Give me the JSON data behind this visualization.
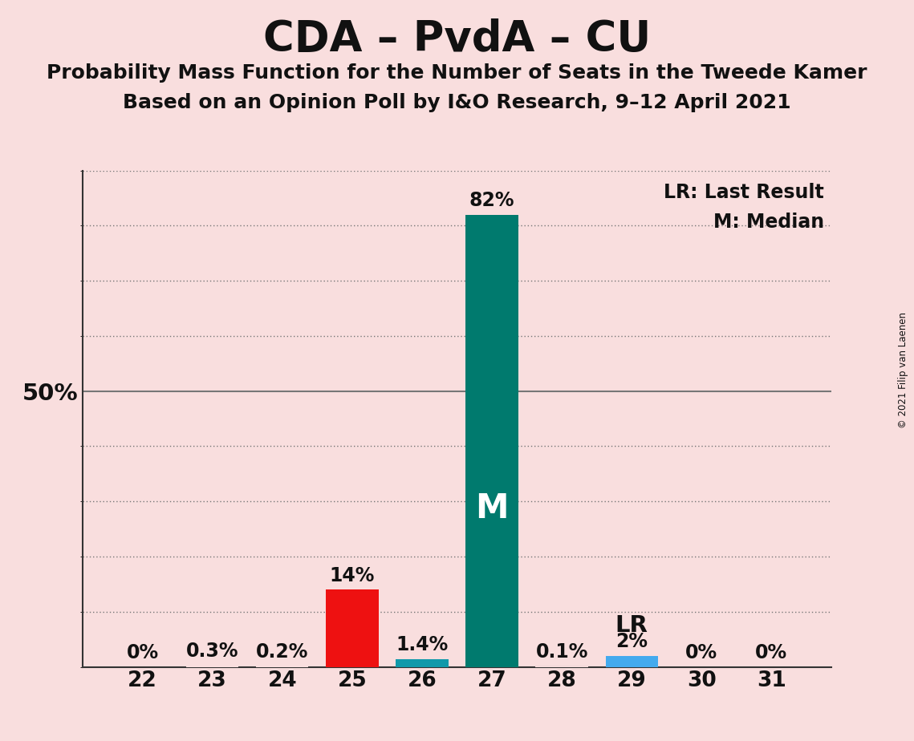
{
  "title": "CDA – PvdA – CU",
  "subtitle1": "Probability Mass Function for the Number of Seats in the Tweede Kamer",
  "subtitle2": "Based on an Opinion Poll by I&O Research, 9–12 April 2021",
  "copyright": "© 2021 Filip van Laenen",
  "categories": [
    22,
    23,
    24,
    25,
    26,
    27,
    28,
    29,
    30,
    31
  ],
  "values": [
    0.0,
    0.3,
    0.2,
    14.0,
    1.4,
    82.0,
    0.1,
    2.0,
    0.0,
    0.0
  ],
  "labels": [
    "0%",
    "0.3%",
    "0.2%",
    "14%",
    "1.4%",
    "82%",
    "0.1%",
    "2%",
    "0%",
    "0%"
  ],
  "bar_colors": [
    "#f9dede",
    "#f9dede",
    "#f9dede",
    "#ee1111",
    "#1199aa",
    "#007a6e",
    "#f9dede",
    "#44aaee",
    "#f9dede",
    "#f9dede"
  ],
  "median_bar": 27,
  "lr_bar": 29,
  "median_label": "M",
  "lr_label": "LR",
  "legend_lr": "LR: Last Result",
  "legend_m": "M: Median",
  "background_color": "#f9dede",
  "plot_bg_color": "#f9dede",
  "bar_width": 0.75,
  "ylim": [
    0,
    90
  ],
  "fifty_pct": 50,
  "title_fontsize": 38,
  "subtitle_fontsize": 18,
  "label_fontsize": 17,
  "tick_fontsize": 19,
  "legend_fontsize": 17,
  "text_color": "#111111",
  "grid_color": "#777777",
  "teal_color": "#007a6e",
  "blue_color": "#44aaee"
}
